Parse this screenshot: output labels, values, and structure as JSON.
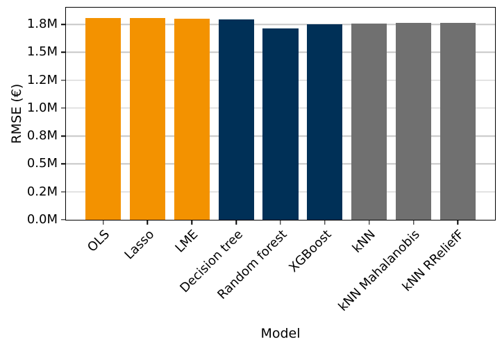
{
  "chart_data": {
    "type": "bar",
    "title": "",
    "xlabel": "Model",
    "ylabel": "RMSE (€)",
    "categories": [
      "OLS",
      "Lasso",
      "LME",
      "Decision tree",
      "Random forest",
      "XGBoost",
      "kNN",
      "kNN Mahalanobis",
      "kNN RReliefF"
    ],
    "values": [
      1.807,
      1.806,
      1.802,
      1.796,
      1.714,
      1.748,
      1.759,
      1.762,
      1.762
    ],
    "values_unit": "M€",
    "bar_colors": [
      "#f39200",
      "#f39200",
      "#f39200",
      "#003057",
      "#003057",
      "#003057",
      "#707070",
      "#707070",
      "#707070"
    ],
    "color_legend": {
      "orange": "#f39200",
      "navy": "#003057",
      "gray": "#707070"
    },
    "yticks": [
      {
        "value": 0.0,
        "label": "0.0M"
      },
      {
        "value": 0.25,
        "label": "0.2M"
      },
      {
        "value": 0.5,
        "label": "0.5M"
      },
      {
        "value": 0.75,
        "label": "0.8M"
      },
      {
        "value": 1.0,
        "label": "1.0M"
      },
      {
        "value": 1.25,
        "label": "1.2M"
      },
      {
        "value": 1.5,
        "label": "1.5M"
      },
      {
        "value": 1.75,
        "label": "1.8M"
      }
    ],
    "ylim": [
      0,
      1.9
    ],
    "xlim": [
      -0.84,
      8.84
    ],
    "bar_width_units": 0.8,
    "grid": true,
    "legend_position": "none",
    "x_tick_rotation": 45
  }
}
